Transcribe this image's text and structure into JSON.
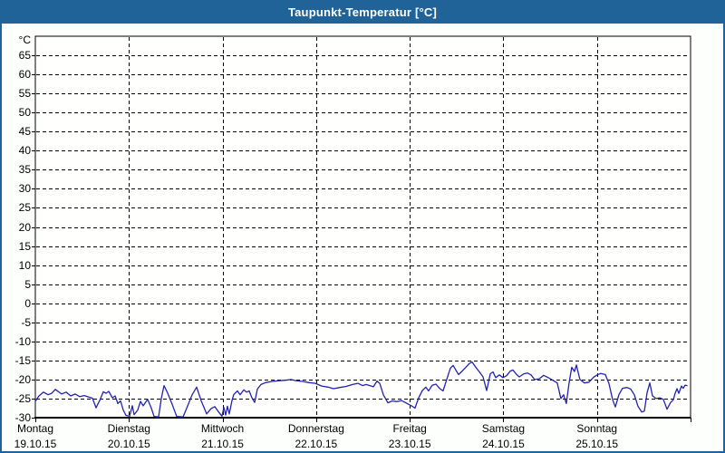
{
  "window": {
    "title": "Taupunkt-Temperatur [°C]"
  },
  "colors": {
    "titlebar_bg": "#1f6398",
    "window_border": "#1f6398",
    "title_text": "#ffffff",
    "page_bg": "#fdfffd",
    "plot_bg": "#fffffe",
    "grid": "#000000",
    "axis": "#000000",
    "label_text": "#000000",
    "line": "#2222b2"
  },
  "chart_data": {
    "type": "line",
    "title": "Taupunkt-Temperatur [°C]",
    "ylabel": "°C",
    "ylim": [
      -30,
      70
    ],
    "ytick_step": 5,
    "ytick_values": [
      65,
      60,
      55,
      50,
      45,
      40,
      35,
      30,
      25,
      20,
      15,
      10,
      5,
      0,
      -5,
      -10,
      -15,
      -20,
      -25,
      -30
    ],
    "grid": {
      "style": "dashed",
      "horizontal": "every 5 °C",
      "vertical": "day boundaries"
    },
    "legend": "none",
    "x_axis": {
      "unit": "days",
      "days": [
        {
          "label": "Montag",
          "date": "19.10.15"
        },
        {
          "label": "Dienstag",
          "date": "20.10.15"
        },
        {
          "label": "Mittwoch",
          "date": "21.10.15"
        },
        {
          "label": "Donnerstag",
          "date": "22.10.15"
        },
        {
          "label": "Freitag",
          "date": "23.10.15"
        },
        {
          "label": "Samstag",
          "date": "24.10.15"
        },
        {
          "label": "Sonntag",
          "date": "25.10.15"
        }
      ]
    },
    "series": [
      {
        "name": "Taupunkt-Temperatur",
        "color": "#2222b2",
        "points_t_days_vs_degC": [
          [
            0.0,
            -25.7
          ],
          [
            0.039,
            -24.3
          ],
          [
            0.087,
            -23.3
          ],
          [
            0.136,
            -24.0
          ],
          [
            0.174,
            -23.6
          ],
          [
            0.213,
            -22.6
          ],
          [
            0.281,
            -23.8
          ],
          [
            0.329,
            -23.3
          ],
          [
            0.378,
            -24.3
          ],
          [
            0.426,
            -23.8
          ],
          [
            0.474,
            -24.5
          ],
          [
            0.523,
            -24.2
          ],
          [
            0.571,
            -24.6
          ],
          [
            0.61,
            -24.9
          ],
          [
            0.649,
            -27.4
          ],
          [
            0.687,
            -25.5
          ],
          [
            0.726,
            -23.2
          ],
          [
            0.755,
            -23.6
          ],
          [
            0.784,
            -23.1
          ],
          [
            0.823,
            -24.8
          ],
          [
            0.852,
            -24.3
          ],
          [
            0.881,
            -26.3
          ],
          [
            0.91,
            -25.6
          ],
          [
            0.939,
            -28.0
          ],
          [
            0.968,
            -29.4
          ],
          [
            1.007,
            -29.6
          ],
          [
            1.036,
            -26.9
          ],
          [
            1.055,
            -29.2
          ],
          [
            1.094,
            -28.0
          ],
          [
            1.123,
            -25.7
          ],
          [
            1.152,
            -26.9
          ],
          [
            1.2,
            -25.2
          ],
          [
            1.239,
            -27.5
          ],
          [
            1.268,
            -29.7
          ],
          [
            1.317,
            -29.8
          ],
          [
            1.346,
            -25.0
          ],
          [
            1.375,
            -21.6
          ],
          [
            1.413,
            -23.5
          ],
          [
            1.462,
            -26.5
          ],
          [
            1.51,
            -29.7
          ],
          [
            1.578,
            -29.8
          ],
          [
            1.626,
            -27.0
          ],
          [
            1.675,
            -24.0
          ],
          [
            1.723,
            -22.0
          ],
          [
            1.771,
            -25.5
          ],
          [
            1.83,
            -29.0
          ],
          [
            1.878,
            -27.6
          ],
          [
            1.917,
            -27.1
          ],
          [
            1.955,
            -28.4
          ],
          [
            1.994,
            -29.6
          ],
          [
            2.014,
            -27.3
          ],
          [
            2.033,
            -29.3
          ],
          [
            2.052,
            -27.0
          ],
          [
            2.072,
            -29.0
          ],
          [
            2.101,
            -25.5
          ],
          [
            2.12,
            -23.9
          ],
          [
            2.159,
            -23.0
          ],
          [
            2.188,
            -24.0
          ],
          [
            2.227,
            -22.7
          ],
          [
            2.256,
            -23.3
          ],
          [
            2.285,
            -23.0
          ],
          [
            2.314,
            -24.8
          ],
          [
            2.343,
            -26.0
          ],
          [
            2.372,
            -22.5
          ],
          [
            2.411,
            -21.3
          ],
          [
            2.459,
            -20.8
          ],
          [
            2.527,
            -20.5
          ],
          [
            2.604,
            -20.3
          ],
          [
            2.672,
            -20.2
          ],
          [
            2.73,
            -20.0
          ],
          [
            2.788,
            -20.3
          ],
          [
            2.856,
            -20.5
          ],
          [
            2.924,
            -20.8
          ],
          [
            2.992,
            -21.0
          ],
          [
            3.059,
            -21.7
          ],
          [
            3.127,
            -22.0
          ],
          [
            3.185,
            -22.4
          ],
          [
            3.253,
            -22.1
          ],
          [
            3.321,
            -21.8
          ],
          [
            3.389,
            -21.3
          ],
          [
            3.447,
            -21.0
          ],
          [
            3.495,
            -21.6
          ],
          [
            3.534,
            -21.3
          ],
          [
            3.573,
            -21.6
          ],
          [
            3.611,
            -21.9
          ],
          [
            3.65,
            -20.4
          ],
          [
            3.679,
            -21.0
          ],
          [
            3.718,
            -24.0
          ],
          [
            3.766,
            -26.1
          ],
          [
            3.815,
            -25.6
          ],
          [
            3.863,
            -25.8
          ],
          [
            3.911,
            -25.5
          ],
          [
            3.95,
            -26.0
          ],
          [
            3.989,
            -26.5
          ],
          [
            4.027,
            -27.0
          ],
          [
            4.056,
            -27.5
          ],
          [
            4.095,
            -24.8
          ],
          [
            4.134,
            -22.9
          ],
          [
            4.172,
            -22.0
          ],
          [
            4.201,
            -23.0
          ],
          [
            4.24,
            -21.5
          ],
          [
            4.279,
            -21.2
          ],
          [
            4.318,
            -22.3
          ],
          [
            4.356,
            -23.0
          ],
          [
            4.395,
            -20.0
          ],
          [
            4.434,
            -17.0
          ],
          [
            4.463,
            -16.3
          ],
          [
            4.492,
            -17.5
          ],
          [
            4.521,
            -18.7
          ],
          [
            4.56,
            -17.8
          ],
          [
            4.599,
            -16.8
          ],
          [
            4.637,
            -15.8
          ],
          [
            4.666,
            -15.4
          ],
          [
            4.705,
            -16.8
          ],
          [
            4.744,
            -18.0
          ],
          [
            4.783,
            -19.3
          ],
          [
            4.822,
            -22.9
          ],
          [
            4.86,
            -18.5
          ],
          [
            4.889,
            -18.0
          ],
          [
            4.918,
            -19.5
          ],
          [
            4.957,
            -18.8
          ],
          [
            4.996,
            -19.5
          ],
          [
            5.035,
            -19.0
          ],
          [
            5.073,
            -17.8
          ],
          [
            5.102,
            -17.5
          ],
          [
            5.141,
            -18.7
          ],
          [
            5.17,
            -19.3
          ],
          [
            5.218,
            -18.5
          ],
          [
            5.257,
            -18.3
          ],
          [
            5.296,
            -18.8
          ],
          [
            5.334,
            -20.0
          ],
          [
            5.383,
            -19.8
          ],
          [
            5.431,
            -18.9
          ],
          [
            5.48,
            -19.5
          ],
          [
            5.528,
            -20.2
          ],
          [
            5.576,
            -20.9
          ],
          [
            5.615,
            -25.0
          ],
          [
            5.644,
            -24.0
          ],
          [
            5.673,
            -26.3
          ],
          [
            5.702,
            -21.0
          ],
          [
            5.731,
            -16.8
          ],
          [
            5.76,
            -17.9
          ],
          [
            5.78,
            -16.2
          ],
          [
            5.818,
            -20.0
          ],
          [
            5.867,
            -20.9
          ],
          [
            5.915,
            -20.7
          ],
          [
            5.963,
            -19.4
          ],
          [
            6.002,
            -18.8
          ],
          [
            6.041,
            -18.4
          ],
          [
            6.089,
            -18.7
          ],
          [
            6.128,
            -21.0
          ],
          [
            6.167,
            -25.3
          ],
          [
            6.196,
            -27.2
          ],
          [
            6.234,
            -24.0
          ],
          [
            6.273,
            -22.3
          ],
          [
            6.321,
            -22.1
          ],
          [
            6.36,
            -22.5
          ],
          [
            6.399,
            -24.0
          ],
          [
            6.438,
            -27.0
          ],
          [
            6.477,
            -28.5
          ],
          [
            6.506,
            -28.3
          ],
          [
            6.535,
            -23.5
          ],
          [
            6.564,
            -20.9
          ],
          [
            6.593,
            -24.3
          ],
          [
            6.632,
            -25.0
          ],
          [
            6.671,
            -24.8
          ],
          [
            6.71,
            -25.2
          ],
          [
            6.748,
            -27.8
          ],
          [
            6.787,
            -26.0
          ],
          [
            6.816,
            -25.3
          ],
          [
            6.835,
            -23.6
          ],
          [
            6.855,
            -22.4
          ],
          [
            6.874,
            -23.6
          ],
          [
            6.903,
            -21.7
          ],
          [
            6.922,
            -22.3
          ],
          [
            6.941,
            -21.5
          ],
          [
            6.961,
            -21.6
          ]
        ]
      }
    ]
  }
}
